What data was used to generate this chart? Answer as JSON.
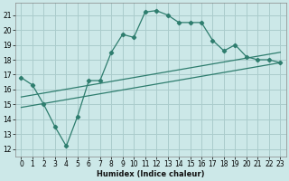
{
  "xlabel": "Humidex (Indice chaleur)",
  "xlim": [
    -0.5,
    23.5
  ],
  "ylim": [
    11.5,
    21.8
  ],
  "yticks": [
    12,
    13,
    14,
    15,
    16,
    17,
    18,
    19,
    20,
    21
  ],
  "xticks": [
    0,
    1,
    2,
    3,
    4,
    5,
    6,
    7,
    8,
    9,
    10,
    11,
    12,
    13,
    14,
    15,
    16,
    17,
    18,
    19,
    20,
    21,
    22,
    23
  ],
  "bg_color": "#cce8e8",
  "grid_color": "#aacccc",
  "line_color": "#2e7d6e",
  "line1_x": [
    0,
    1,
    2,
    3,
    4,
    5,
    6,
    7,
    8,
    9,
    10,
    11,
    12,
    13,
    14,
    15,
    16,
    17,
    18,
    19,
    20,
    21,
    22,
    23
  ],
  "line1_y": [
    16.8,
    16.3,
    15.0,
    13.5,
    12.2,
    14.2,
    16.6,
    16.6,
    18.5,
    19.7,
    19.5,
    21.2,
    21.3,
    21.0,
    20.5,
    20.5,
    20.5,
    19.3,
    18.6,
    19.0,
    18.2,
    18.0,
    18.0,
    17.8
  ],
  "line2_x": [
    0,
    23
  ],
  "line2_y": [
    15.5,
    18.5
  ],
  "line3_x": [
    0,
    23
  ],
  "line3_y": [
    14.8,
    17.8
  ]
}
